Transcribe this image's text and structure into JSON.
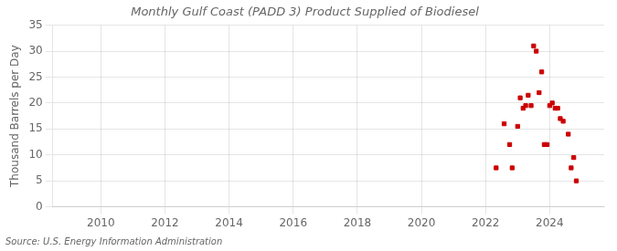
{
  "chart_data": {
    "type": "scatter",
    "title": "Monthly Gulf Coast (PADD 3) Product Supplied of Biodiesel",
    "ylabel": "Thousand Barrels per Day",
    "annotations": [
      "Source: U.S. Energy Information Administration"
    ],
    "x": [
      2022.33,
      2022.58,
      2022.75,
      2022.83,
      2023.0,
      2023.08,
      2023.17,
      2023.25,
      2023.33,
      2023.42,
      2023.5,
      2023.58,
      2023.67,
      2023.75,
      2023.83,
      2023.92,
      2024.0,
      2024.08,
      2024.17,
      2024.25,
      2024.33,
      2024.42,
      2024.58,
      2024.67,
      2024.75,
      2024.83
    ],
    "values": [
      7.5,
      16.0,
      12.0,
      7.5,
      15.5,
      21.0,
      19.0,
      19.5,
      21.5,
      19.5,
      31.0,
      30.0,
      22.0,
      26.0,
      12.0,
      12.0,
      19.5,
      20.0,
      19.0,
      19.0,
      17.0,
      16.5,
      14.0,
      7.5,
      9.5,
      5.0
    ],
    "color": "#cc0000",
    "marker": "square",
    "xlim": [
      2008.5,
      2025.7
    ],
    "ylim": [
      0,
      35
    ],
    "xticks": [
      2010,
      2012,
      2014,
      2016,
      2018,
      2020,
      2022,
      2024
    ],
    "yticks": [
      0,
      5,
      10,
      15,
      20,
      25,
      30,
      35
    ],
    "grid": true
  }
}
